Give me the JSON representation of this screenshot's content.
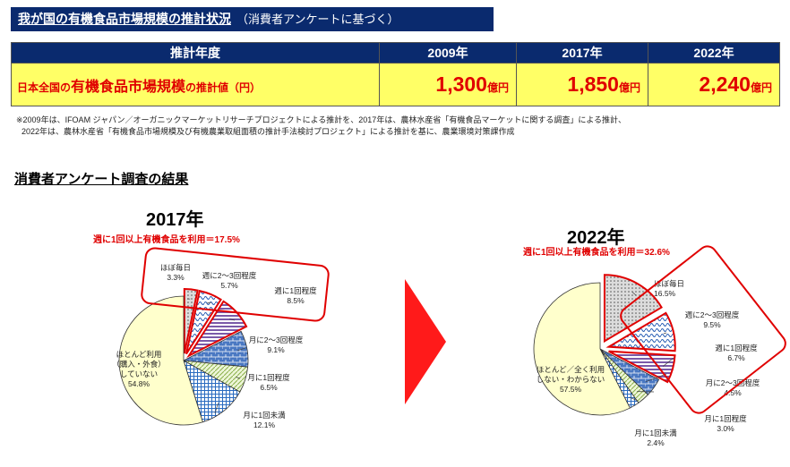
{
  "header": {
    "title": "我が国の有機食品市場規模の推計状況",
    "subtitle": "（消費者アンケートに基づく）"
  },
  "estimate_table": {
    "col_header": "推計年度",
    "years": [
      "2009年",
      "2017年",
      "2022年"
    ],
    "row_label_prefix": "日本全国の",
    "row_label_main": "有機食品市場規模",
    "row_label_suffix": "の推計値（円）",
    "values": [
      "1,300",
      "1,850",
      "2,240"
    ],
    "unit": "億円"
  },
  "notes": {
    "line1": "※2009年は、IFOAM ジャパン／オーガニックマーケットリサーチプロジェクトによる推計を、2017年は、農林水産省「有機食品マーケットに関する調査」による推計、",
    "line2": "2022年は、農林水産省「有機食品市場規模及び有機農業取組面積の推計手法検討プロジェクト」による推計を基に、農業環境対策課作成"
  },
  "section_title": "消費者アンケート調査の結果",
  "chart_data": [
    {
      "type": "pie",
      "title": "2017年",
      "subtitle": "週に1回以上有機食品を利用＝17.5%",
      "slices": [
        {
          "label": "ほぼ毎日",
          "value": 3.3,
          "pattern": "dots"
        },
        {
          "label": "週に2～3回程度",
          "value": 5.7,
          "pattern": "wave"
        },
        {
          "label": "週に1回程度",
          "value": 8.5,
          "pattern": "stripes"
        },
        {
          "label": "月に2～3回程度",
          "value": 9.1,
          "pattern": "brick"
        },
        {
          "label": "月に1回程度",
          "value": 6.5,
          "pattern": "diag"
        },
        {
          "label": "月に1回未満",
          "value": 12.1,
          "pattern": "grid"
        },
        {
          "label": "ほとんど利用（購入・外食）していない",
          "value": 54.8,
          "pattern": "plain"
        }
      ]
    },
    {
      "type": "pie",
      "title": "2022年",
      "subtitle": "週に1回以上有機食品を利用＝32.6%",
      "slices": [
        {
          "label": "ほぼ毎日",
          "value": 16.5,
          "pattern": "dots"
        },
        {
          "label": "週に2～3回程度",
          "value": 9.5,
          "pattern": "wave"
        },
        {
          "label": "週に1回程度",
          "value": 6.7,
          "pattern": "stripes"
        },
        {
          "label": "月に2～3回程度",
          "value": 4.5,
          "pattern": "brick"
        },
        {
          "label": "月に1回程度",
          "value": 3.0,
          "pattern": "diag"
        },
        {
          "label": "月に1回未満",
          "value": 2.4,
          "pattern": "grid"
        },
        {
          "label": "ほとんど／全く利用しない・わからない",
          "value": 57.5,
          "pattern": "plain"
        }
      ]
    }
  ]
}
